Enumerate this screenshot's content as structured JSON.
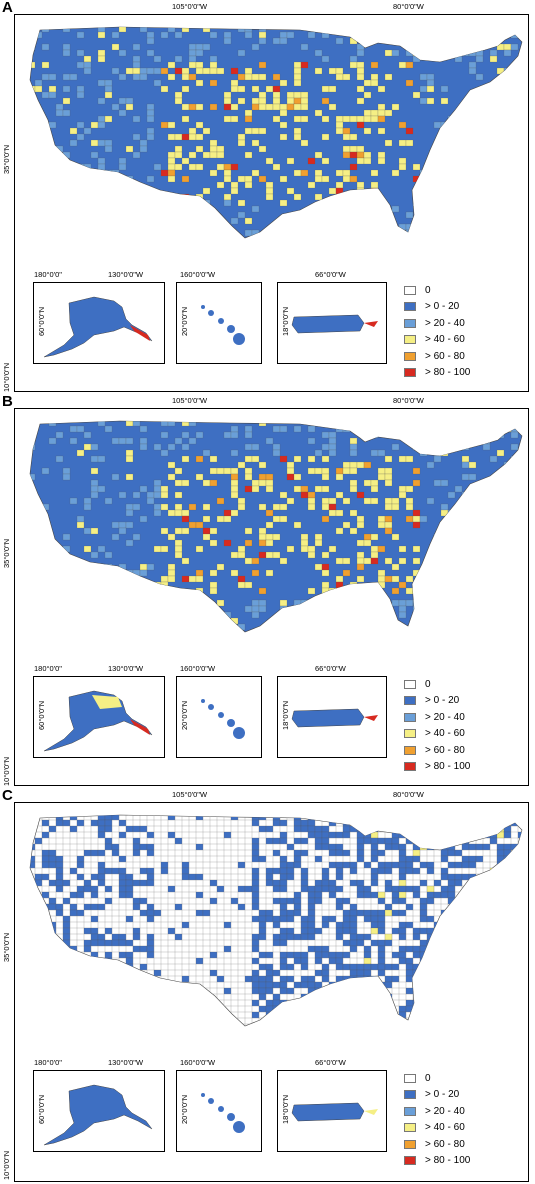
{
  "panels": [
    {
      "label": "A",
      "scheme": "A"
    },
    {
      "label": "B",
      "scheme": "B"
    },
    {
      "label": "C",
      "scheme": "C"
    }
  ],
  "axis": {
    "lon_105": "105°0'0\"W",
    "lon_80": "80°0'0\"W",
    "lat_35": "35°0'0\"N",
    "lat_10": "10°0'0\"N",
    "ak_lon_180": "180°0'0\"",
    "ak_lon_130": "130°0'0\"W",
    "ak_lat_60": "60°0'0\"N",
    "hi_lon_160": "160°0'0\"W",
    "hi_lat_20": "20°0'0\"N",
    "pr_lon_66": "66°0'0\"W",
    "pr_lat_18": "18°0'0\"N"
  },
  "legend": [
    {
      "label": "0",
      "color": "#ffffff"
    },
    {
      "label": "> 0 - 20",
      "color": "#3e6fc2"
    },
    {
      "label": "> 20 - 40",
      "color": "#6a9fd8"
    },
    {
      "label": "> 40 - 60",
      "color": "#f5ef85"
    },
    {
      "label": "> 60 - 80",
      "color": "#f0a030"
    },
    {
      "label": "> 80 - 100",
      "color": "#d72a20"
    }
  ]
}
